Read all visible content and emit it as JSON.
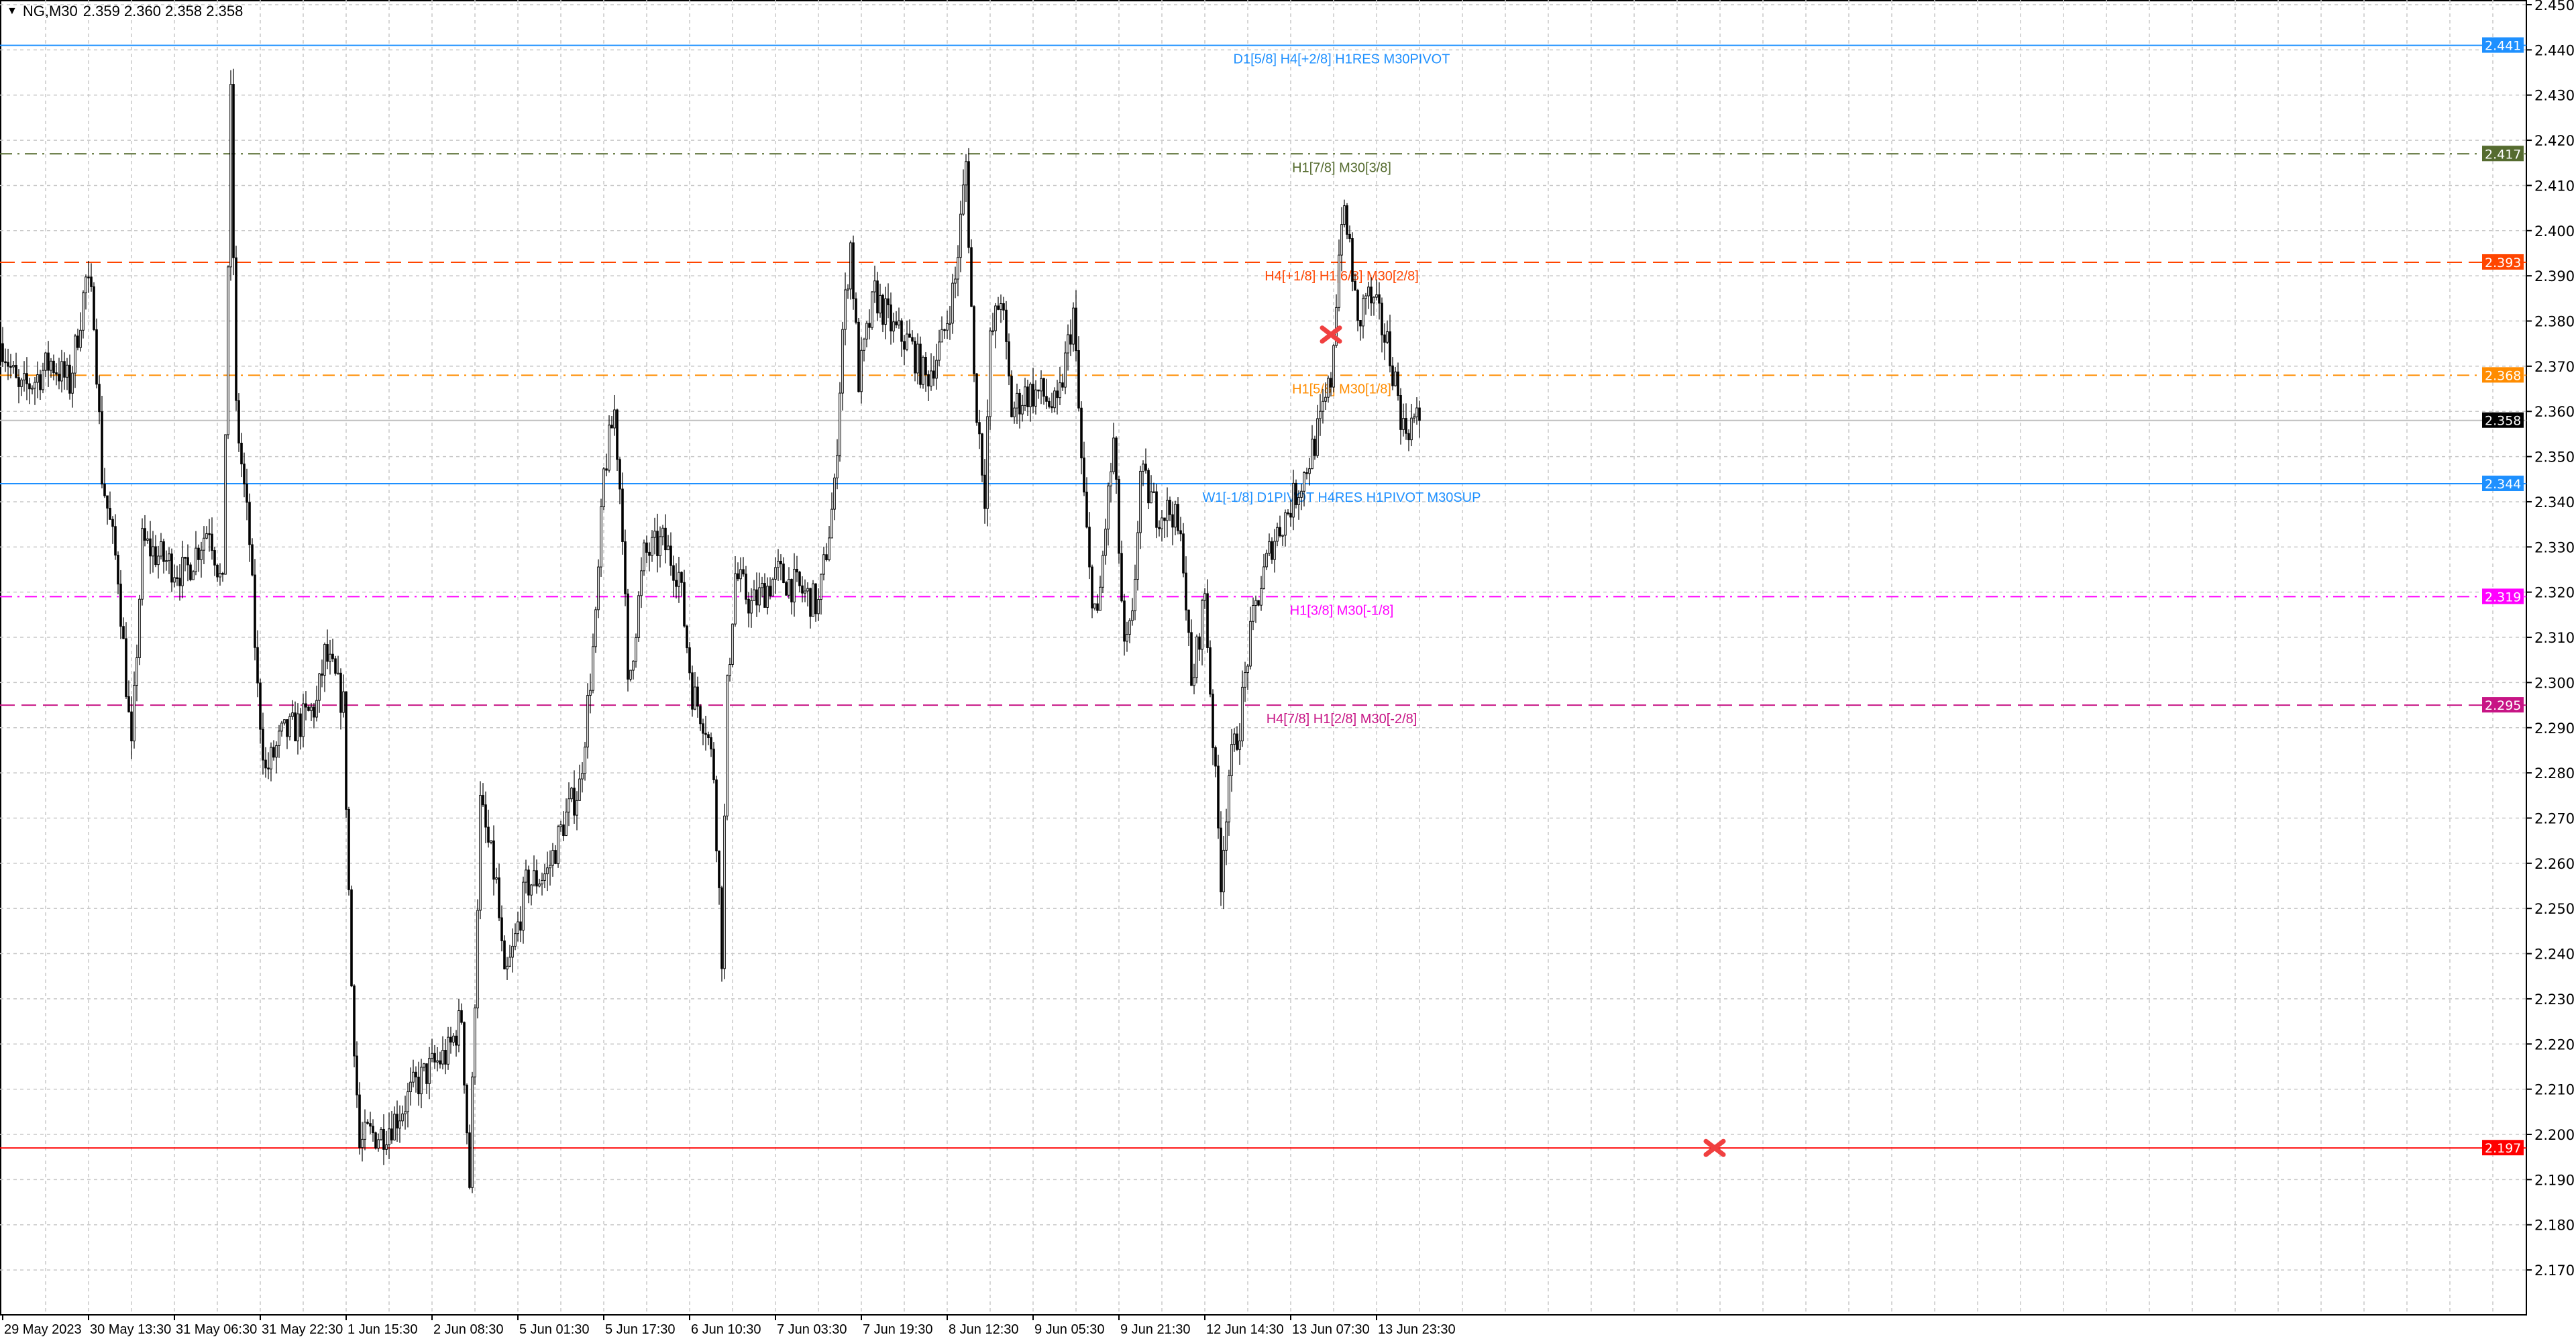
{
  "header": {
    "symbol": "NG,M30",
    "ohlc": "2.359 2.360 2.358 2.358",
    "menu_icon": "triangle-down-icon"
  },
  "chart_data": {
    "type": "candlestick",
    "symbol": "NG",
    "timeframe": "M30",
    "ylim": [
      2.16,
      2.45
    ],
    "y_ticks": [
      2.45,
      2.44,
      2.43,
      2.42,
      2.41,
      2.4,
      2.39,
      2.38,
      2.37,
      2.36,
      2.35,
      2.34,
      2.33,
      2.32,
      2.31,
      2.3,
      2.29,
      2.28,
      2.27,
      2.26,
      2.25,
      2.24,
      2.23,
      2.22,
      2.21,
      2.2,
      2.19,
      2.18,
      2.17
    ],
    "x_ticks": [
      "29 May 2023",
      "30 May 13:30",
      "31 May 06:30",
      "31 May 22:30",
      "1 Jun 15:30",
      "2 Jun 08:30",
      "5 Jun 01:30",
      "5 Jun 17:30",
      "6 Jun 10:30",
      "7 Jun 03:30",
      "7 Jun 19:30",
      "8 Jun 12:30",
      "9 Jun 05:30",
      "9 Jun 21:30",
      "12 Jun 14:30",
      "13 Jun 07:30",
      "13 Jun 23:30"
    ],
    "bars_per_tick": 32,
    "grid": true,
    "price_path": [
      [
        0,
        2.375
      ],
      [
        6,
        2.364
      ],
      [
        12,
        2.367
      ],
      [
        18,
        2.371
      ],
      [
        25,
        2.366
      ],
      [
        31,
        2.389
      ],
      [
        34,
        2.382
      ],
      [
        37,
        2.346
      ],
      [
        43,
        2.324
      ],
      [
        48,
        2.284
      ],
      [
        52,
        2.331
      ],
      [
        58,
        2.328
      ],
      [
        68,
        2.324
      ],
      [
        77,
        2.335
      ],
      [
        82,
        2.32
      ],
      [
        85,
        2.429
      ],
      [
        87,
        2.36
      ],
      [
        92,
        2.331
      ],
      [
        95,
        2.298
      ],
      [
        98,
        2.28
      ],
      [
        104,
        2.288
      ],
      [
        111,
        2.291
      ],
      [
        117,
        2.295
      ],
      [
        120,
        2.306
      ],
      [
        123,
        2.302
      ],
      [
        127,
        2.295
      ],
      [
        130,
        2.233
      ],
      [
        133,
        2.197
      ],
      [
        136,
        2.2
      ],
      [
        141,
        2.2
      ],
      [
        147,
        2.204
      ],
      [
        154,
        2.211
      ],
      [
        160,
        2.215
      ],
      [
        166,
        2.218
      ],
      [
        171,
        2.226
      ],
      [
        174,
        2.189
      ],
      [
        178,
        2.273
      ],
      [
        184,
        2.255
      ],
      [
        187,
        2.233
      ],
      [
        190,
        2.24
      ],
      [
        195,
        2.255
      ],
      [
        203,
        2.258
      ],
      [
        209,
        2.269
      ],
      [
        215,
        2.277
      ],
      [
        221,
        2.313
      ],
      [
        224,
        2.346
      ],
      [
        228,
        2.36
      ],
      [
        231,
        2.335
      ],
      [
        233,
        2.298
      ],
      [
        239,
        2.328
      ],
      [
        246,
        2.331
      ],
      [
        252,
        2.324
      ],
      [
        257,
        2.298
      ],
      [
        262,
        2.291
      ],
      [
        265,
        2.28
      ],
      [
        268,
        2.24
      ],
      [
        270,
        2.298
      ],
      [
        273,
        2.324
      ],
      [
        279,
        2.317
      ],
      [
        289,
        2.324
      ],
      [
        298,
        2.32
      ],
      [
        304,
        2.317
      ],
      [
        310,
        2.342
      ],
      [
        313,
        2.378
      ],
      [
        316,
        2.397
      ],
      [
        319,
        2.367
      ],
      [
        325,
        2.386
      ],
      [
        332,
        2.378
      ],
      [
        338,
        2.375
      ],
      [
        344,
        2.367
      ],
      [
        350,
        2.375
      ],
      [
        355,
        2.389
      ],
      [
        359,
        2.415
      ],
      [
        362,
        2.367
      ],
      [
        366,
        2.342
      ],
      [
        368,
        2.375
      ],
      [
        372,
        2.386
      ],
      [
        376,
        2.36
      ],
      [
        381,
        2.364
      ],
      [
        387,
        2.364
      ],
      [
        393,
        2.36
      ],
      [
        399,
        2.382
      ],
      [
        402,
        2.349
      ],
      [
        405,
        2.324
      ],
      [
        408,
        2.313
      ],
      [
        411,
        2.335
      ],
      [
        414,
        2.353
      ],
      [
        418,
        2.306
      ],
      [
        421,
        2.313
      ],
      [
        424,
        2.346
      ],
      [
        430,
        2.338
      ],
      [
        436,
        2.338
      ],
      [
        440,
        2.328
      ],
      [
        443,
        2.298
      ],
      [
        448,
        2.32
      ],
      [
        451,
        2.288
      ],
      [
        454,
        2.257
      ],
      [
        457,
        2.28
      ],
      [
        461,
        2.291
      ],
      [
        464,
        2.306
      ],
      [
        467,
        2.317
      ],
      [
        473,
        2.331
      ],
      [
        479,
        2.338
      ],
      [
        485,
        2.346
      ],
      [
        491,
        2.357
      ],
      [
        495,
        2.367
      ],
      [
        499,
        2.404
      ],
      [
        502,
        2.397
      ],
      [
        505,
        2.378
      ],
      [
        508,
        2.386
      ],
      [
        512,
        2.382
      ],
      [
        516,
        2.375
      ],
      [
        519,
        2.367
      ],
      [
        522,
        2.356
      ],
      [
        526,
        2.358
      ],
      [
        528,
        2.358
      ]
    ],
    "levels": [
      {
        "price": 2.441,
        "label": "D1[5/8] H4[+2/8] H1RES M30PIVOT",
        "tag": "2.441",
        "color": "#1e90ff",
        "style": "solid"
      },
      {
        "price": 2.417,
        "label": "H1[7/8] M30[3/8]",
        "tag": "2.417",
        "color": "#556b2f",
        "style": "dashdot"
      },
      {
        "price": 2.393,
        "label": "H4[+1/8] H1[6/8] M30[2/8]",
        "tag": "2.393",
        "color": "#ff4500",
        "style": "dash"
      },
      {
        "price": 2.368,
        "label": "H1[5/8] M30[1/8]",
        "tag": "2.368",
        "color": "#ff8c00",
        "style": "dashdot"
      },
      {
        "price": 2.358,
        "label": "",
        "tag": "2.358",
        "color": "#000000",
        "line_color": "#c0c0c0",
        "style": "solid"
      },
      {
        "price": 2.344,
        "label": "W1[-1/8] D1PIVOT H4RES H1PIVOT M30SUP",
        "tag": "2.344",
        "color": "#1e90ff",
        "style": "solid"
      },
      {
        "price": 2.319,
        "label": "H1[3/8] M30[-1/8]",
        "tag": "2.319",
        "color": "#ff00ff",
        "style": "dashdot"
      },
      {
        "price": 2.295,
        "label": "H4[7/8] H1[2/8] M30[-2/8]",
        "tag": "2.295",
        "color": "#c71585",
        "style": "dash"
      },
      {
        "price": 2.197,
        "label": "",
        "tag": "2.197",
        "color": "#ff0000",
        "style": "solid"
      }
    ],
    "markers": [
      {
        "bar": 495,
        "price": 2.377,
        "icon": "x-mark-icon",
        "color": "#f04040"
      },
      {
        "bar": 638,
        "price": 2.197,
        "icon": "x-mark-icon",
        "color": "#f04040"
      }
    ],
    "colors": {
      "bull_fill": "#ffffff",
      "bear_fill": "#000000",
      "outline": "#000000",
      "grid": "#c8c8c8"
    }
  }
}
